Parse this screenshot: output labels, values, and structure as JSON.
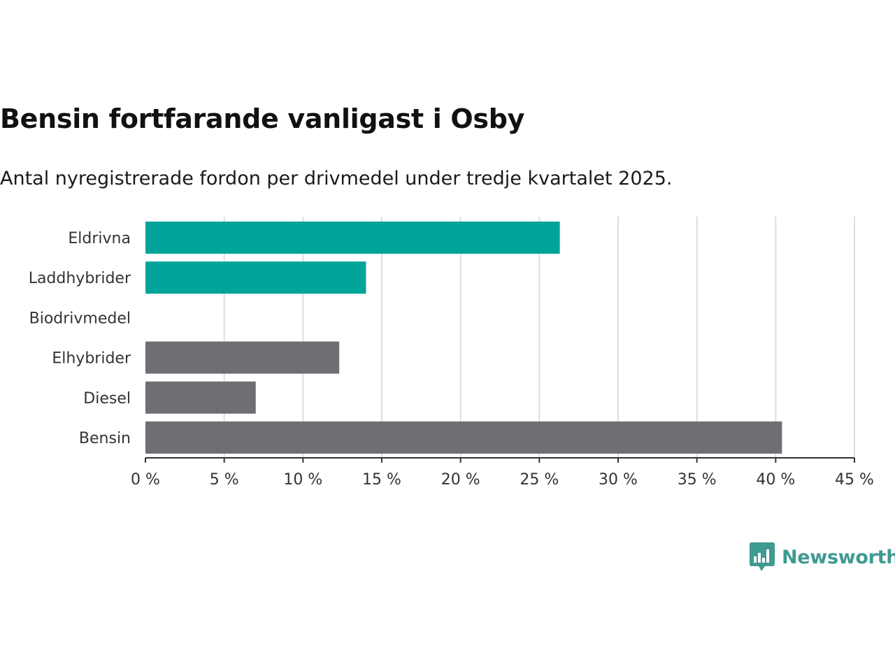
{
  "chart_data": {
    "type": "bar",
    "orientation": "horizontal",
    "title": "Bensin fortfarande vanligast i Osby",
    "subtitle": "Antal nyregistrerade fordon per drivmedel under tredje kvartalet 2025.",
    "categories": [
      "Eldrivna",
      "Laddhybrider",
      "Biodrivmedel",
      "Elhybrider",
      "Diesel",
      "Bensin"
    ],
    "values": [
      26.3,
      14.0,
      0,
      12.3,
      7.0,
      40.4
    ],
    "colors": [
      "#00a499",
      "#00a499",
      "#00a499",
      "#6e6e73",
      "#6e6e73",
      "#6e6e73"
    ],
    "xlim": [
      0,
      45
    ],
    "xticks": [
      0,
      5,
      10,
      15,
      20,
      25,
      30,
      35,
      40,
      45
    ],
    "xtick_labels": [
      "0 %",
      "5 %",
      "10 %",
      "15 %",
      "20 %",
      "25 %",
      "30 %",
      "35 %",
      "40 %",
      "45 %"
    ],
    "grid": true,
    "xlabel": "",
    "ylabel": ""
  },
  "brand": {
    "name": "Newsworthy",
    "logo_icon": "bar-chart-speech-bubble-icon",
    "color": "#3f9a92"
  }
}
